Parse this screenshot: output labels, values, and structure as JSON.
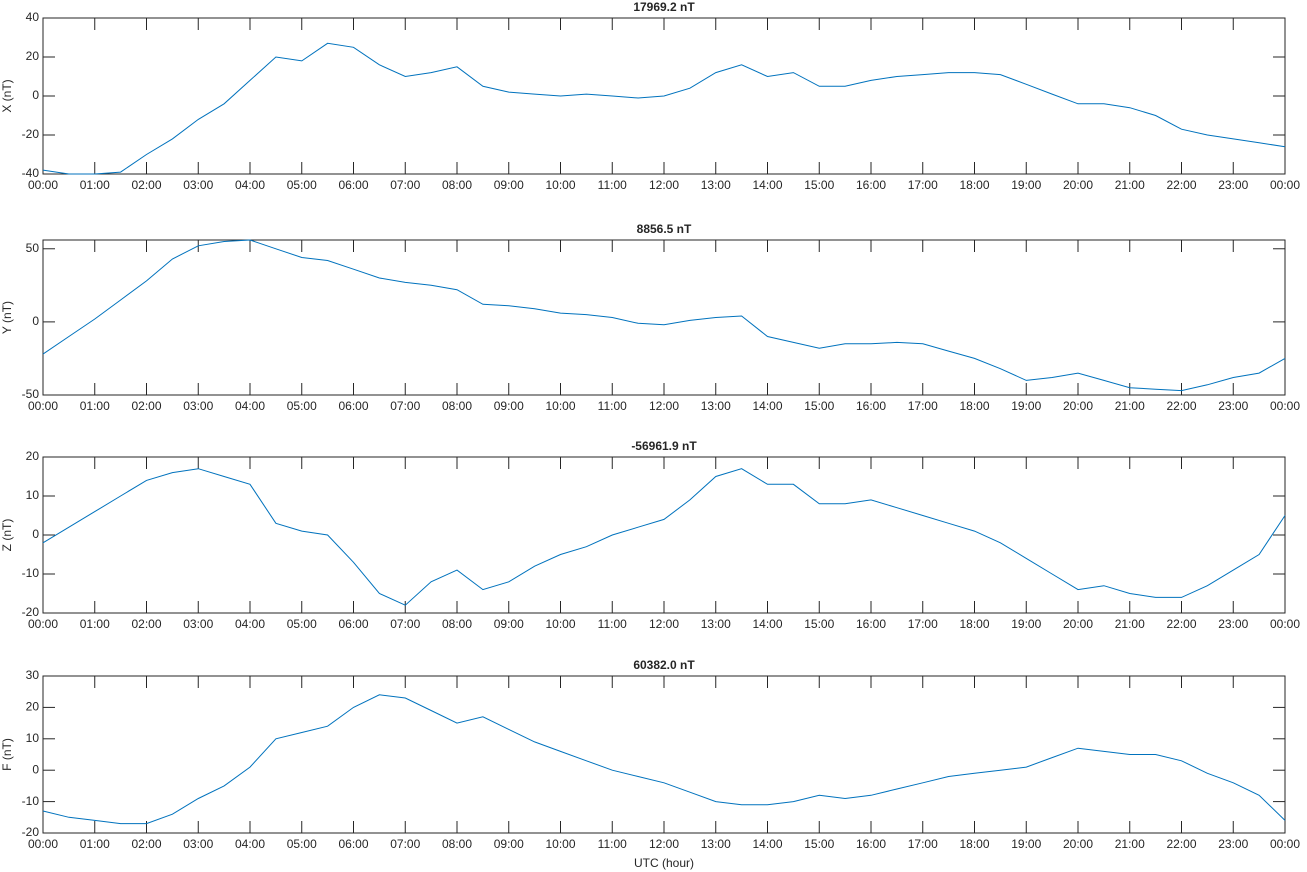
{
  "chart_data": [
    {
      "type": "line",
      "title": "17969.2 nT",
      "y_label": "X (nT)",
      "color": "#0072bd",
      "grid": false,
      "x": [
        0,
        0.5,
        1,
        1.5,
        2,
        2.5,
        3,
        3.5,
        4,
        4.5,
        5,
        5.5,
        6,
        6.5,
        7,
        7.5,
        8,
        8.5,
        9,
        9.5,
        10,
        10.5,
        11,
        11.5,
        12,
        12.5,
        13,
        13.5,
        14,
        14.5,
        15,
        15.5,
        16,
        16.5,
        17,
        17.5,
        18,
        18.5,
        19,
        19.5,
        20,
        20.5,
        21,
        21.5,
        22,
        22.5,
        23,
        23.5,
        24
      ],
      "values": [
        -38,
        -40,
        -40,
        -39,
        -30,
        -22,
        -12,
        -4,
        8,
        20,
        18,
        27,
        25,
        16,
        10,
        12,
        15,
        5,
        2,
        1,
        0,
        1,
        0,
        -1,
        0,
        4,
        12,
        16,
        10,
        12,
        5,
        5,
        8,
        10,
        11,
        12,
        12,
        11,
        6,
        1,
        -4,
        -4,
        -6,
        -10,
        -17,
        -20,
        -22,
        -24,
        -26
      ],
      "xlim": [
        0,
        24
      ],
      "ylim": [
        -40,
        40
      ],
      "yticks": [
        -40,
        -20,
        0,
        20,
        40
      ],
      "xticks": [
        {
          "value": 0,
          "label": "00:00"
        },
        {
          "value": 1,
          "label": "01:00"
        },
        {
          "value": 2,
          "label": "02:00"
        },
        {
          "value": 3,
          "label": "03:00"
        },
        {
          "value": 4,
          "label": "04:00"
        },
        {
          "value": 5,
          "label": "05:00"
        },
        {
          "value": 6,
          "label": "06:00"
        },
        {
          "value": 7,
          "label": "07:00"
        },
        {
          "value": 8,
          "label": "08:00"
        },
        {
          "value": 9,
          "label": "09:00"
        },
        {
          "value": 10,
          "label": "10:00"
        },
        {
          "value": 11,
          "label": "11:00"
        },
        {
          "value": 12,
          "label": "12:00"
        },
        {
          "value": 13,
          "label": "13:00"
        },
        {
          "value": 14,
          "label": "14:00"
        },
        {
          "value": 15,
          "label": "15:00"
        },
        {
          "value": 16,
          "label": "16:00"
        },
        {
          "value": 17,
          "label": "17:00"
        },
        {
          "value": 18,
          "label": "18:00"
        },
        {
          "value": 19,
          "label": "19:00"
        },
        {
          "value": 20,
          "label": "20:00"
        },
        {
          "value": 21,
          "label": "21:00"
        },
        {
          "value": 22,
          "label": "22:00"
        },
        {
          "value": 23,
          "label": "23:00"
        },
        {
          "value": 24,
          "label": "00:00"
        }
      ]
    },
    {
      "type": "line",
      "title": "8856.5 nT",
      "y_label": "Y (nT)",
      "color": "#0072bd",
      "grid": false,
      "x": [
        0,
        0.5,
        1,
        1.5,
        2,
        2.5,
        3,
        3.5,
        4,
        4.5,
        5,
        5.5,
        6,
        6.5,
        7,
        7.5,
        8,
        8.5,
        9,
        9.5,
        10,
        10.5,
        11,
        11.5,
        12,
        12.5,
        13,
        13.5,
        14,
        14.5,
        15,
        15.5,
        16,
        16.5,
        17,
        17.5,
        18,
        18.5,
        19,
        19.5,
        20,
        20.5,
        21,
        21.5,
        22,
        22.5,
        23,
        23.5,
        24
      ],
      "values": [
        -22,
        -10,
        2,
        15,
        28,
        43,
        52,
        55,
        56,
        50,
        44,
        42,
        36,
        30,
        27,
        25,
        22,
        12,
        11,
        9,
        6,
        5,
        3,
        -1,
        -2,
        1,
        3,
        4,
        -10,
        -14,
        -18,
        -15,
        -15,
        -14,
        -15,
        -20,
        -25,
        -32,
        -40,
        -38,
        -35,
        -40,
        -45,
        -46,
        -47,
        -43,
        -38,
        -35,
        -25
      ],
      "xlim": [
        0,
        24
      ],
      "ylim": [
        -50,
        56
      ],
      "yticks": [
        -50,
        0,
        50
      ],
      "xticks": [
        {
          "value": 0,
          "label": "00:00"
        },
        {
          "value": 1,
          "label": "01:00"
        },
        {
          "value": 2,
          "label": "02:00"
        },
        {
          "value": 3,
          "label": "03:00"
        },
        {
          "value": 4,
          "label": "04:00"
        },
        {
          "value": 5,
          "label": "05:00"
        },
        {
          "value": 6,
          "label": "06:00"
        },
        {
          "value": 7,
          "label": "07:00"
        },
        {
          "value": 8,
          "label": "08:00"
        },
        {
          "value": 9,
          "label": "09:00"
        },
        {
          "value": 10,
          "label": "10:00"
        },
        {
          "value": 11,
          "label": "11:00"
        },
        {
          "value": 12,
          "label": "12:00"
        },
        {
          "value": 13,
          "label": "13:00"
        },
        {
          "value": 14,
          "label": "14:00"
        },
        {
          "value": 15,
          "label": "15:00"
        },
        {
          "value": 16,
          "label": "16:00"
        },
        {
          "value": 17,
          "label": "17:00"
        },
        {
          "value": 18,
          "label": "18:00"
        },
        {
          "value": 19,
          "label": "19:00"
        },
        {
          "value": 20,
          "label": "20:00"
        },
        {
          "value": 21,
          "label": "21:00"
        },
        {
          "value": 22,
          "label": "22:00"
        },
        {
          "value": 23,
          "label": "23:00"
        },
        {
          "value": 24,
          "label": "00:00"
        }
      ]
    },
    {
      "type": "line",
      "title": "-56961.9 nT",
      "y_label": "Z (nT)",
      "color": "#0072bd",
      "grid": false,
      "x": [
        0,
        0.5,
        1,
        1.5,
        2,
        2.5,
        3,
        3.5,
        4,
        4.5,
        5,
        5.5,
        6,
        6.5,
        7,
        7.5,
        8,
        8.5,
        9,
        9.5,
        10,
        10.5,
        11,
        11.5,
        12,
        12.5,
        13,
        13.5,
        14,
        14.5,
        15,
        15.5,
        16,
        16.5,
        17,
        17.5,
        18,
        18.5,
        19,
        19.5,
        20,
        20.5,
        21,
        21.5,
        22,
        22.5,
        23,
        23.5,
        24
      ],
      "values": [
        -2,
        2,
        6,
        10,
        14,
        16,
        17,
        15,
        13,
        3,
        1,
        0,
        -7,
        -15,
        -18,
        -12,
        -9,
        -14,
        -12,
        -8,
        -5,
        -3,
        0,
        2,
        4,
        9,
        15,
        17,
        13,
        13,
        8,
        8,
        9,
        7,
        5,
        3,
        1,
        -2,
        -6,
        -10,
        -14,
        -13,
        -15,
        -16,
        -16,
        -13,
        -9,
        -5,
        5
      ],
      "xlim": [
        0,
        24
      ],
      "ylim": [
        -20,
        20
      ],
      "yticks": [
        -20,
        -10,
        0,
        10,
        20
      ],
      "xticks": [
        {
          "value": 0,
          "label": "00:00"
        },
        {
          "value": 1,
          "label": "01:00"
        },
        {
          "value": 2,
          "label": "02:00"
        },
        {
          "value": 3,
          "label": "03:00"
        },
        {
          "value": 4,
          "label": "04:00"
        },
        {
          "value": 5,
          "label": "05:00"
        },
        {
          "value": 6,
          "label": "06:00"
        },
        {
          "value": 7,
          "label": "07:00"
        },
        {
          "value": 8,
          "label": "08:00"
        },
        {
          "value": 9,
          "label": "09:00"
        },
        {
          "value": 10,
          "label": "10:00"
        },
        {
          "value": 11,
          "label": "11:00"
        },
        {
          "value": 12,
          "label": "12:00"
        },
        {
          "value": 13,
          "label": "13:00"
        },
        {
          "value": 14,
          "label": "14:00"
        },
        {
          "value": 15,
          "label": "15:00"
        },
        {
          "value": 16,
          "label": "16:00"
        },
        {
          "value": 17,
          "label": "17:00"
        },
        {
          "value": 18,
          "label": "18:00"
        },
        {
          "value": 19,
          "label": "19:00"
        },
        {
          "value": 20,
          "label": "20:00"
        },
        {
          "value": 21,
          "label": "21:00"
        },
        {
          "value": 22,
          "label": "22:00"
        },
        {
          "value": 23,
          "label": "23:00"
        },
        {
          "value": 24,
          "label": "00:00"
        }
      ]
    },
    {
      "type": "line",
      "title": "60382.0 nT",
      "y_label": "F (nT)",
      "x_label": "UTC (hour)",
      "color": "#0072bd",
      "grid": false,
      "x": [
        0,
        0.5,
        1,
        1.5,
        2,
        2.5,
        3,
        3.5,
        4,
        4.5,
        5,
        5.5,
        6,
        6.5,
        7,
        7.5,
        8,
        8.5,
        9,
        9.5,
        10,
        10.5,
        11,
        11.5,
        12,
        12.5,
        13,
        13.5,
        14,
        14.5,
        15,
        15.5,
        16,
        16.5,
        17,
        17.5,
        18,
        18.5,
        19,
        19.5,
        20,
        20.5,
        21,
        21.5,
        22,
        22.5,
        23,
        23.5,
        24
      ],
      "values": [
        -13,
        -15,
        -16,
        -17,
        -17,
        -14,
        -9,
        -5,
        1,
        10,
        12,
        14,
        20,
        24,
        23,
        19,
        15,
        17,
        13,
        9,
        6,
        3,
        0,
        -2,
        -4,
        -7,
        -10,
        -11,
        -11,
        -10,
        -8,
        -9,
        -8,
        -6,
        -4,
        -2,
        -1,
        0,
        1,
        4,
        7,
        6,
        5,
        5,
        3,
        -1,
        -4,
        -8,
        -16
      ],
      "xlim": [
        0,
        24
      ],
      "ylim": [
        -20,
        30
      ],
      "yticks": [
        -20,
        -10,
        0,
        10,
        20,
        30
      ],
      "xticks": [
        {
          "value": 0,
          "label": "00:00"
        },
        {
          "value": 1,
          "label": "01:00"
        },
        {
          "value": 2,
          "label": "02:00"
        },
        {
          "value": 3,
          "label": "03:00"
        },
        {
          "value": 4,
          "label": "04:00"
        },
        {
          "value": 5,
          "label": "05:00"
        },
        {
          "value": 6,
          "label": "06:00"
        },
        {
          "value": 7,
          "label": "07:00"
        },
        {
          "value": 8,
          "label": "08:00"
        },
        {
          "value": 9,
          "label": "09:00"
        },
        {
          "value": 10,
          "label": "10:00"
        },
        {
          "value": 11,
          "label": "11:00"
        },
        {
          "value": 12,
          "label": "12:00"
        },
        {
          "value": 13,
          "label": "13:00"
        },
        {
          "value": 14,
          "label": "14:00"
        },
        {
          "value": 15,
          "label": "15:00"
        },
        {
          "value": 16,
          "label": "16:00"
        },
        {
          "value": 17,
          "label": "17:00"
        },
        {
          "value": 18,
          "label": "18:00"
        },
        {
          "value": 19,
          "label": "19:00"
        },
        {
          "value": 20,
          "label": "20:00"
        },
        {
          "value": 21,
          "label": "21:00"
        },
        {
          "value": 22,
          "label": "22:00"
        },
        {
          "value": 23,
          "label": "23:00"
        },
        {
          "value": 24,
          "label": "00:00"
        }
      ]
    }
  ]
}
